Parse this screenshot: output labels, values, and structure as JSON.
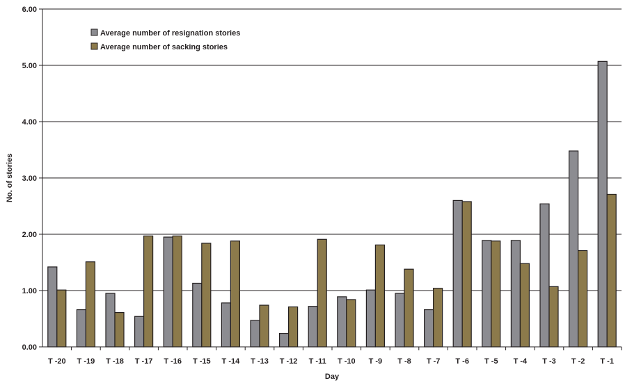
{
  "chart_data": {
    "type": "bar",
    "title": "",
    "xlabel": "Day",
    "ylabel": "No. of stories",
    "ylim": [
      0,
      6
    ],
    "yticks": [
      "0.00",
      "1.00",
      "2.00",
      "3.00",
      "4.00",
      "5.00",
      "6.00"
    ],
    "grid": true,
    "legend_position": "top-left",
    "categories": [
      "T -20",
      "T -19",
      "T -18",
      "T -17",
      "T -16",
      "T -15",
      "T -14",
      "T -13",
      "T -12",
      "T -11",
      "T -10",
      "T -9",
      "T -8",
      "T -7",
      "T -6",
      "T -5",
      "T -4",
      "T -3",
      "T -2",
      "T -1"
    ],
    "series": [
      {
        "name": "Average number of resignation stories",
        "color": "#8c8c91",
        "values": [
          1.42,
          0.66,
          0.95,
          0.54,
          1.95,
          1.13,
          0.78,
          0.47,
          0.24,
          0.72,
          0.89,
          1.01,
          0.95,
          0.66,
          2.6,
          1.89,
          1.89,
          2.54,
          3.48,
          5.07
        ]
      },
      {
        "name": "Average number of sacking stories",
        "color": "#8c7a4b",
        "values": [
          1.01,
          1.51,
          0.61,
          1.97,
          1.97,
          1.84,
          1.88,
          0.74,
          0.71,
          1.91,
          0.84,
          1.81,
          1.38,
          1.04,
          2.58,
          1.88,
          1.48,
          1.07,
          1.71,
          2.71
        ]
      }
    ]
  }
}
